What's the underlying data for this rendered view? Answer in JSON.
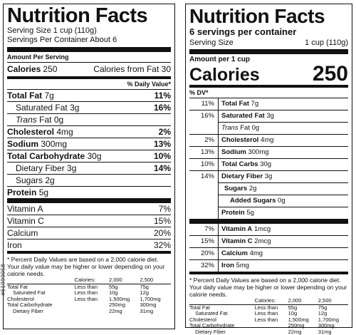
{
  "left": {
    "title": "Nutrition Facts",
    "serving_size": "Serving Size 1 cup (110g)",
    "servings_per_container": "Servings Per Container About 6",
    "amount_per_serving": "Amount Per Serving",
    "calories_label": "Calories",
    "calories_value": "250",
    "calories_fat": "Calories from Fat 30",
    "daily_value_header": "% Daily Value*",
    "nutrients": [
      {
        "name": "Total Fat",
        "amount": "7g",
        "dv": "11%"
      },
      {
        "name": "Saturated Fat",
        "amount": "3g",
        "dv": "16%"
      },
      {
        "name": "Trans",
        "amount": "Fat 0g",
        "dv": ""
      },
      {
        "name": "Cholesterol",
        "amount": "4mg",
        "dv": "2%"
      },
      {
        "name": "Sodium",
        "amount": "300mg",
        "dv": "13%"
      },
      {
        "name": "Total Carbohydrate",
        "amount": "30g",
        "dv": "10%"
      },
      {
        "name": "Dietary Fiber",
        "amount": "3g",
        "dv": "14%"
      },
      {
        "name": "Sugars",
        "amount": "2g",
        "dv": ""
      },
      {
        "name": "Protein",
        "amount": "5g",
        "dv": ""
      }
    ],
    "vitamins": [
      {
        "name": "Vitamin A",
        "dv": "7%"
      },
      {
        "name": "Vitamin C",
        "dv": "15%"
      },
      {
        "name": "Calcium",
        "dv": "20%"
      },
      {
        "name": "Iron",
        "dv": "32%"
      }
    ],
    "footnote": "* Percent Daily Values are based on a 2,000 calorie diet. Your daily value may be higher or lower depending on your calorie needs.",
    "table": {
      "header": [
        "Calories:",
        "2,000",
        "2,500"
      ],
      "rows": [
        [
          "Total Fat",
          "Less than",
          "55g",
          "75g"
        ],
        [
          "Saturated Fat",
          "Less than",
          "10g",
          "12g"
        ],
        [
          "Cholesterol",
          "Less than",
          "1,500mg",
          "1,700mg"
        ],
        [
          "Total Carbohydrate",
          "",
          "250mg",
          "300mg"
        ],
        [
          "Dietary Fiber",
          "",
          "22mg",
          "31mg"
        ]
      ]
    }
  },
  "right": {
    "title": "Nutrition Facts",
    "servings": "6 servings per container",
    "serving_size_label": "Serving Size",
    "serving_size_value": "1 cup (110g)",
    "amount_per": "Amount per 1 cup",
    "calories_label": "Calories",
    "calories_value": "250",
    "dv_header": "% DV*",
    "nutrients": [
      {
        "dv": "11%",
        "name": "Total Fat",
        "amount": "7g"
      },
      {
        "dv": "16%",
        "name": "Saturated Fat",
        "amount": "3g"
      },
      {
        "dv": "",
        "name": "Trans",
        "amount": "Fat 0g"
      },
      {
        "dv": "2%",
        "name": "Cholesterol",
        "amount": "4mg"
      },
      {
        "dv": "13%",
        "name": "Sodium",
        "amount": "300mg"
      },
      {
        "dv": "10%",
        "name": "Total Carbs",
        "amount": "30g"
      },
      {
        "dv": "14%",
        "name": "Dietary Fiber",
        "amount": "3g"
      },
      {
        "dv": "",
        "name": "Sugars",
        "amount": "2g"
      },
      {
        "dv": "",
        "name": "Added Sugars",
        "amount": "0g"
      },
      {
        "dv": "",
        "name": "Protein",
        "amount": "5g"
      }
    ],
    "vitamins": [
      {
        "dv": "7%",
        "name": "Vitamin A",
        "amount": "1mcg"
      },
      {
        "dv": "15%",
        "name": "Vitamin C",
        "amount": "2mcg"
      },
      {
        "dv": "20%",
        "name": "Calcium",
        "amount": "4mg"
      },
      {
        "dv": "32%",
        "name": "Iron",
        "amount": "5mg"
      }
    ],
    "footnote": "* Percent Daily Values are based on a 2,000 calorie diet. Your daily value may be higher or lower depending on your calorie needs.",
    "table": {
      "header": [
        "Calories:",
        "2,000",
        "2,500"
      ],
      "rows": [
        [
          "Total Fat",
          "Less than",
          "55g",
          "75g"
        ],
        [
          "Saturated Fat",
          "Less than",
          "10g",
          "12g"
        ],
        [
          "Cholesterol",
          "Less than",
          "1,500mg",
          "1,700mg"
        ],
        [
          "Total Carbohydrate",
          "",
          "250mg",
          "300mg"
        ],
        [
          "Dietary Fiber",
          "",
          "22mg",
          "31mg"
        ]
      ]
    }
  },
  "watermark": "#61999058"
}
